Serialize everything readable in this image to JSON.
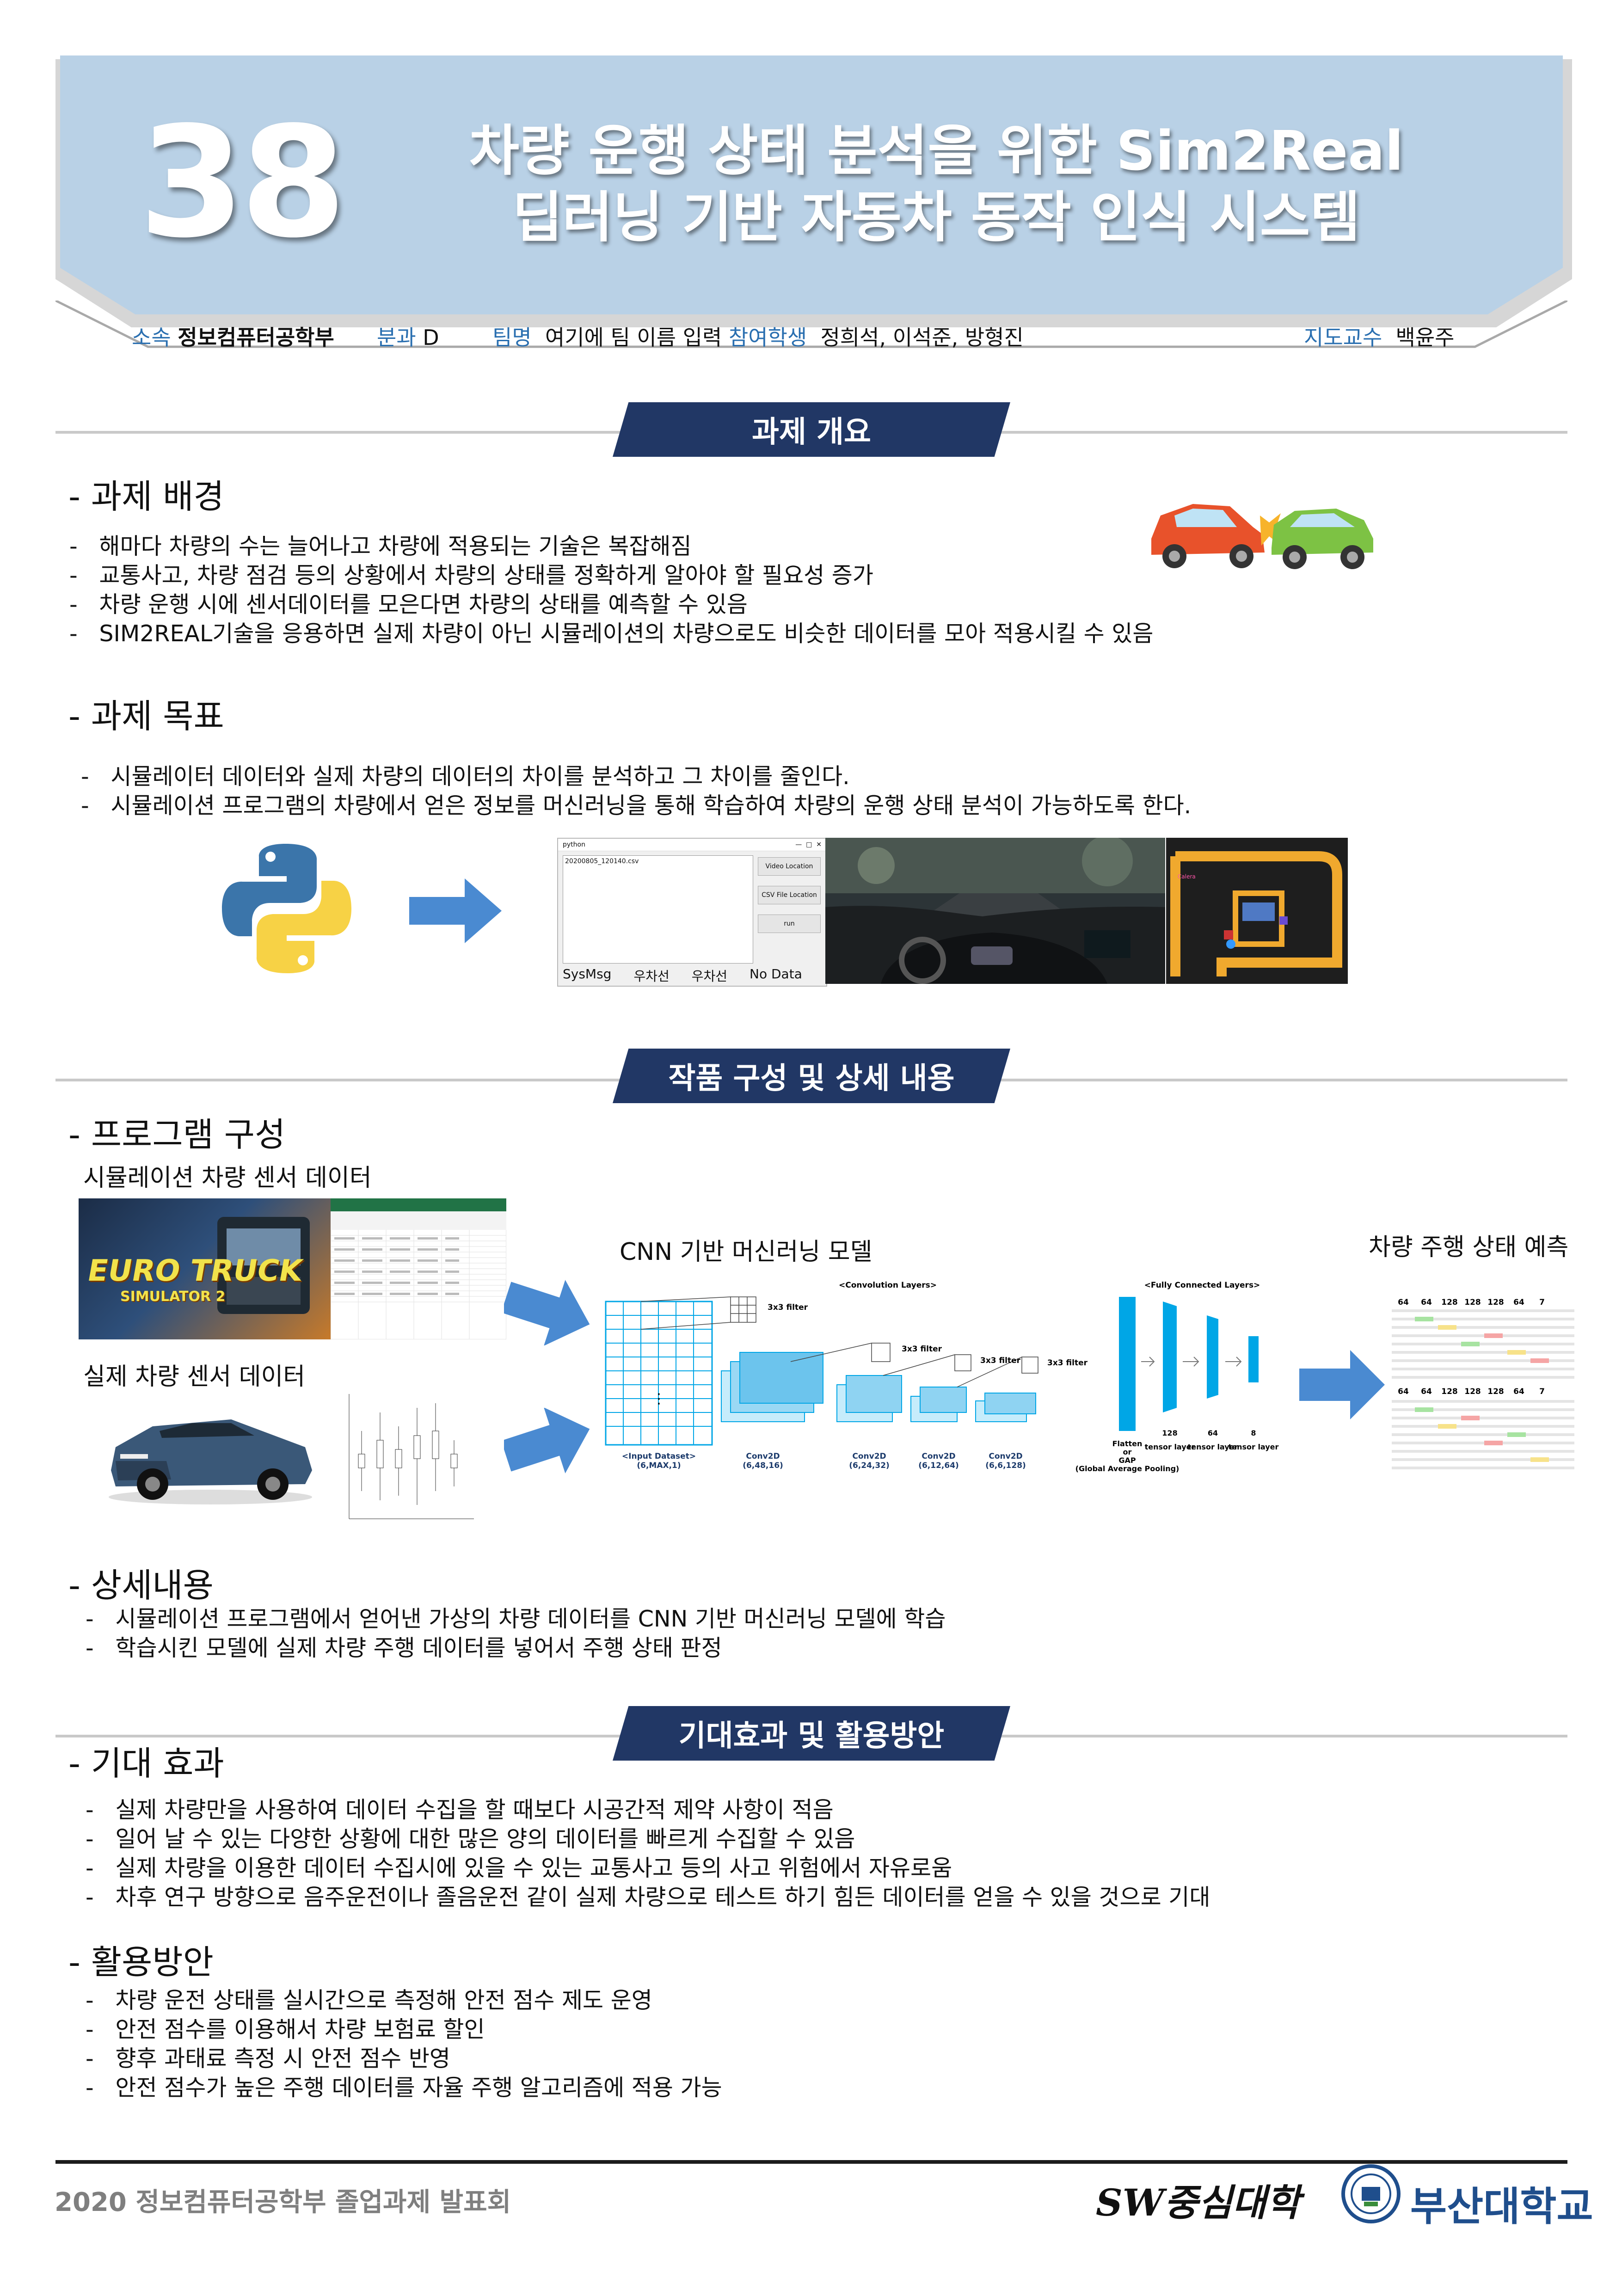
{
  "header": {
    "number": "38",
    "title_line1": "차량 운행 상태 분석을 위한 Sim2Real",
    "title_line2": "딥러닝 기반 자동차 동작 인식 시스템"
  },
  "info": {
    "affiliation_label": "소속",
    "affiliation": "정보컴퓨터공학부",
    "division_label": "분과",
    "division": "D",
    "team_label": "팀명",
    "team": "여기에 팀 이름 입력",
    "students_label": "참여학생",
    "students": "정희석, 이석준, 방형진",
    "advisor_label": "지도교수",
    "advisor": "백윤주"
  },
  "sections": {
    "overview": "과제 개요",
    "composition": "작품 구성 및 상세 내용",
    "effects": "기대효과 및 활용방안"
  },
  "background": {
    "heading": "- 과제 배경",
    "items": [
      "해마다 차량의 수는 늘어나고 차량에 적용되는 기술은 복잡해짐",
      "교통사고, 차량 점검 등의 상황에서 차량의 상태를 정확하게 알아야 할 필요성 증가",
      "차량 운행 시에 센서데이터를 모은다면 차량의 상태를 예측할 수 있음",
      "SIM2REAL기술을 응용하면 실제 차량이 아닌 시뮬레이션의 차량으로도 비슷한 데이터를 모아 적용시킬 수 있음"
    ]
  },
  "goal": {
    "heading": "- 과제 목표",
    "items": [
      "시뮬레이터 데이터와 실제 차량의 데이터의 차이를 분석하고 그 차이를 줄인다.",
      "시뮬레이션 프로그램의 차량에서 얻은 정보를 머신러닝을 통해 학습하여 차량의 운행 상태 분석이 가능하도록 한다."
    ]
  },
  "app_window": {
    "title": "python",
    "file": "20200805_120140.csv",
    "buttons": [
      "Video Location",
      "CSV File Location",
      "run"
    ],
    "status": [
      "SysMsg",
      "우차선",
      "우차선",
      "No Data"
    ]
  },
  "program": {
    "heading": "- 프로그램 구성",
    "sim_caption": "시뮬레이션 차량 센서 데이터",
    "real_caption": "실제 차량 센서 데이터",
    "cnn_caption": "CNN 기반 머신러닝 모델",
    "pred_caption": "차량 주행 상태 예측",
    "game_title": "EURO TRUCK",
    "game_subtitle": "SIMULATOR 2",
    "cnn": {
      "conv_label": "<Convolution Layers>",
      "fc_label": "<Fully Connected Layers>",
      "filter": "3x3 filter",
      "dots": "⋮",
      "layers": [
        {
          "name": "<Input Dataset>",
          "shape": "(6,MAX,1)"
        },
        {
          "name": "Conv2D",
          "shape": "(6,48,16)"
        },
        {
          "name": "Conv2D",
          "shape": "(6,24,32)"
        },
        {
          "name": "Conv2D",
          "shape": "(6,12,64)"
        },
        {
          "name": "Conv2D",
          "shape": "(6,6,128)"
        }
      ],
      "flatten": [
        "Flatten",
        "or",
        "GAP",
        "(Global Average Pooling)"
      ],
      "fc_layers": [
        {
          "size": "128",
          "name": "tensor layer"
        },
        {
          "size": "64",
          "name": "tensor layer"
        },
        {
          "size": "8",
          "name": "tensor layer"
        }
      ]
    },
    "pred_header": [
      "64",
      "64",
      "128",
      "128",
      "128",
      "64",
      "7"
    ]
  },
  "detail": {
    "heading": "- 상세내용",
    "items": [
      "시뮬레이션 프로그램에서 얻어낸 가상의 차량 데이터를 CNN 기반 머신러닝 모델에 학습",
      "학습시킨 모델에 실제 차량 주행 데이터를 넣어서 주행 상태 판정"
    ]
  },
  "expected": {
    "heading": "- 기대 효과",
    "items": [
      "실제 차량만을 사용하여 데이터 수집을 할 때보다 시공간적 제약 사항이 적음",
      "일어 날 수 있는 다양한 상황에 대한 많은 양의 데이터를 빠르게 수집할 수 있음",
      "실제 차량을 이용한 데이터 수집시에 있을 수 있는 교통사고 등의 사고 위험에서 자유로움",
      "차후 연구 방향으로 음주운전이나 졸음운전 같이 실제 차량으로 테스트 하기 힘든 데이터를 얻을 수 있을 것으로 기대"
    ]
  },
  "usage": {
    "heading": "- 활용방안",
    "items": [
      "차량 운전 상태를 실시간으로 측정해 안전 점수 제도 운영",
      "안전 점수를 이용해서 차량 보험료 할인",
      "향후 과태료 측정 시 안전 점수 반영",
      "안전 점수가 높은 주행 데이터를 자율 주행 알고리즘에 적용 가능"
    ]
  },
  "footer": {
    "event": "2020 정보컴퓨터공학부 졸업과제 발표회",
    "sw_logo": "SW중심대학",
    "university": "부산대학교"
  },
  "colors": {
    "banner": "#b9d1e6",
    "section_tab": "#213765",
    "label_blue": "#2a6fb0",
    "arrow_blue": "#4a8ad1",
    "cnn_cyan": "#00a6e6"
  }
}
